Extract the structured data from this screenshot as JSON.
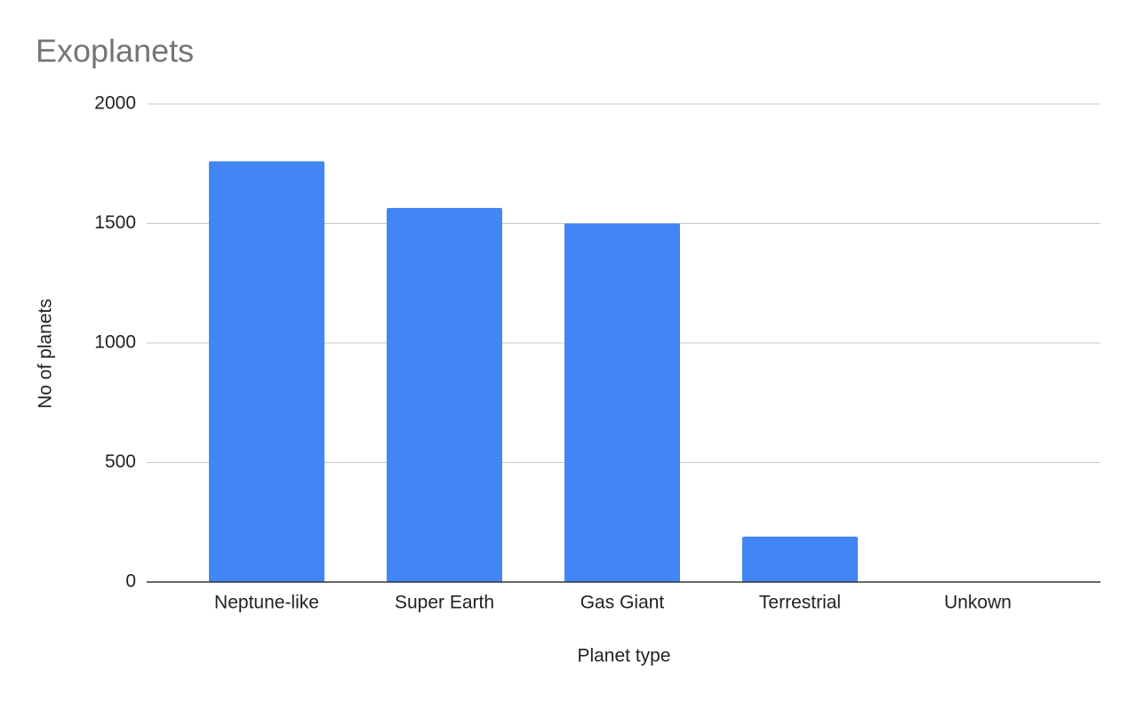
{
  "chart_data": {
    "type": "bar",
    "title": "Exoplanets",
    "x_label": "Planet type",
    "y_label": "No of planets",
    "categories": [
      "Neptune-like",
      "Super Earth",
      "Gas Giant",
      "Terrestrial",
      "Unkown"
    ],
    "values": [
      1760,
      1565,
      1500,
      190,
      0
    ],
    "color": "#4285f4",
    "ylim": [
      0,
      2000
    ],
    "yticks": [
      0,
      500,
      1000,
      1500,
      2000
    ],
    "grid": true
  }
}
